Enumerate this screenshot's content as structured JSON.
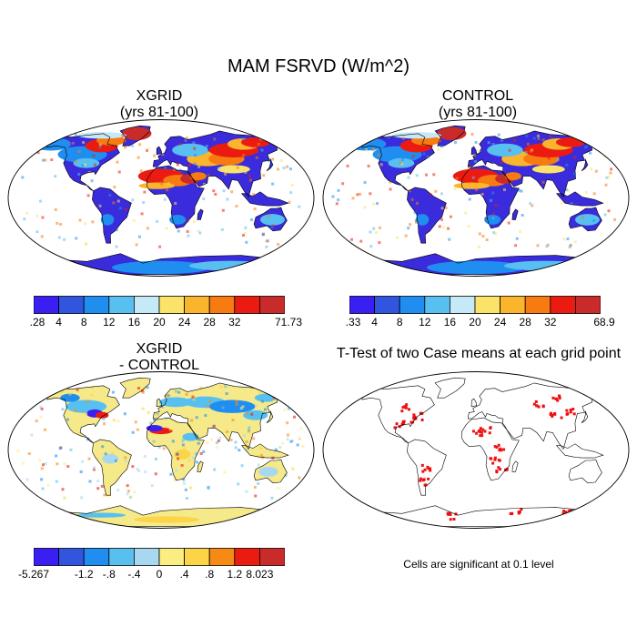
{
  "figure": {
    "title": "MAM FSRVD (W/m^2)"
  },
  "panels": [
    {
      "id": "xgrid",
      "title_line1": "XGRID",
      "title_line2": "(yrs 81-100)"
    },
    {
      "id": "control",
      "title_line1": "CONTROL",
      "title_line2": "(yrs 81-100)"
    },
    {
      "id": "diff",
      "title_line1": "XGRID",
      "title_line2": "- CONTROL"
    },
    {
      "id": "ttest",
      "title_line1": "T-Test of two Case means at each grid point"
    }
  ],
  "colorbars": {
    "xgrid": {
      "colors": [
        "#3a1ff2",
        "#3255e0",
        "#1f8ef0",
        "#58c0f0",
        "#c6e9f8",
        "#fbe36a",
        "#fbb52c",
        "#f77b11",
        "#ec1b11",
        "#c92a2a"
      ],
      "labels": [
        ".28",
        "4",
        "8",
        "12",
        "16",
        "20",
        "24",
        "28",
        "32",
        "71.73"
      ]
    },
    "control": {
      "colors": [
        "#3a1ff2",
        "#3255e0",
        "#1f8ef0",
        "#58c0f0",
        "#c6e9f8",
        "#fbe36a",
        "#fbb52c",
        "#f77b11",
        "#ec1b11",
        "#c92a2a"
      ],
      "labels": [
        ".33",
        "4",
        "8",
        "12",
        "16",
        "20",
        "24",
        "28",
        "32",
        "68.9"
      ]
    },
    "diff": {
      "colors": [
        "#3a1ff2",
        "#3255e0",
        "#1f8ef0",
        "#58c0f0",
        "#a8d8f0",
        "#fbed82",
        "#fbd448",
        "#f78a14",
        "#ec1b11",
        "#c92a2a"
      ],
      "labels": [
        "-5.267",
        "-1.2",
        "-.8",
        "-.4",
        "0",
        ".4",
        ".8",
        "1.2",
        "8.023"
      ]
    }
  },
  "ttest_note": "Cells are significant at 0.1 level"
}
